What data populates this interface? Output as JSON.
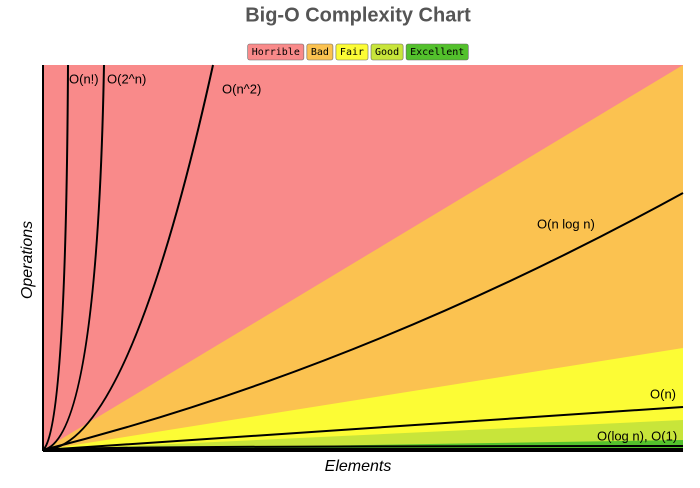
{
  "header": {
    "title": "Big-O Complexity Chart"
  },
  "legend": [
    {
      "label": "Horrible",
      "color": "#f98a8a"
    },
    {
      "label": "Bad",
      "color": "#fbc250"
    },
    {
      "label": "Fair",
      "color": "#fcfc35"
    },
    {
      "label": "Good",
      "color": "#c8e53a"
    },
    {
      "label": "Excellent",
      "color": "#53c12c"
    }
  ],
  "axes": {
    "x": "Elements",
    "y": "Operations"
  },
  "curves": [
    "O(n!)",
    "O(2^n)",
    "O(n^2)",
    "O(n log n)",
    "O(n)",
    "O(log n), O(1)"
  ]
}
